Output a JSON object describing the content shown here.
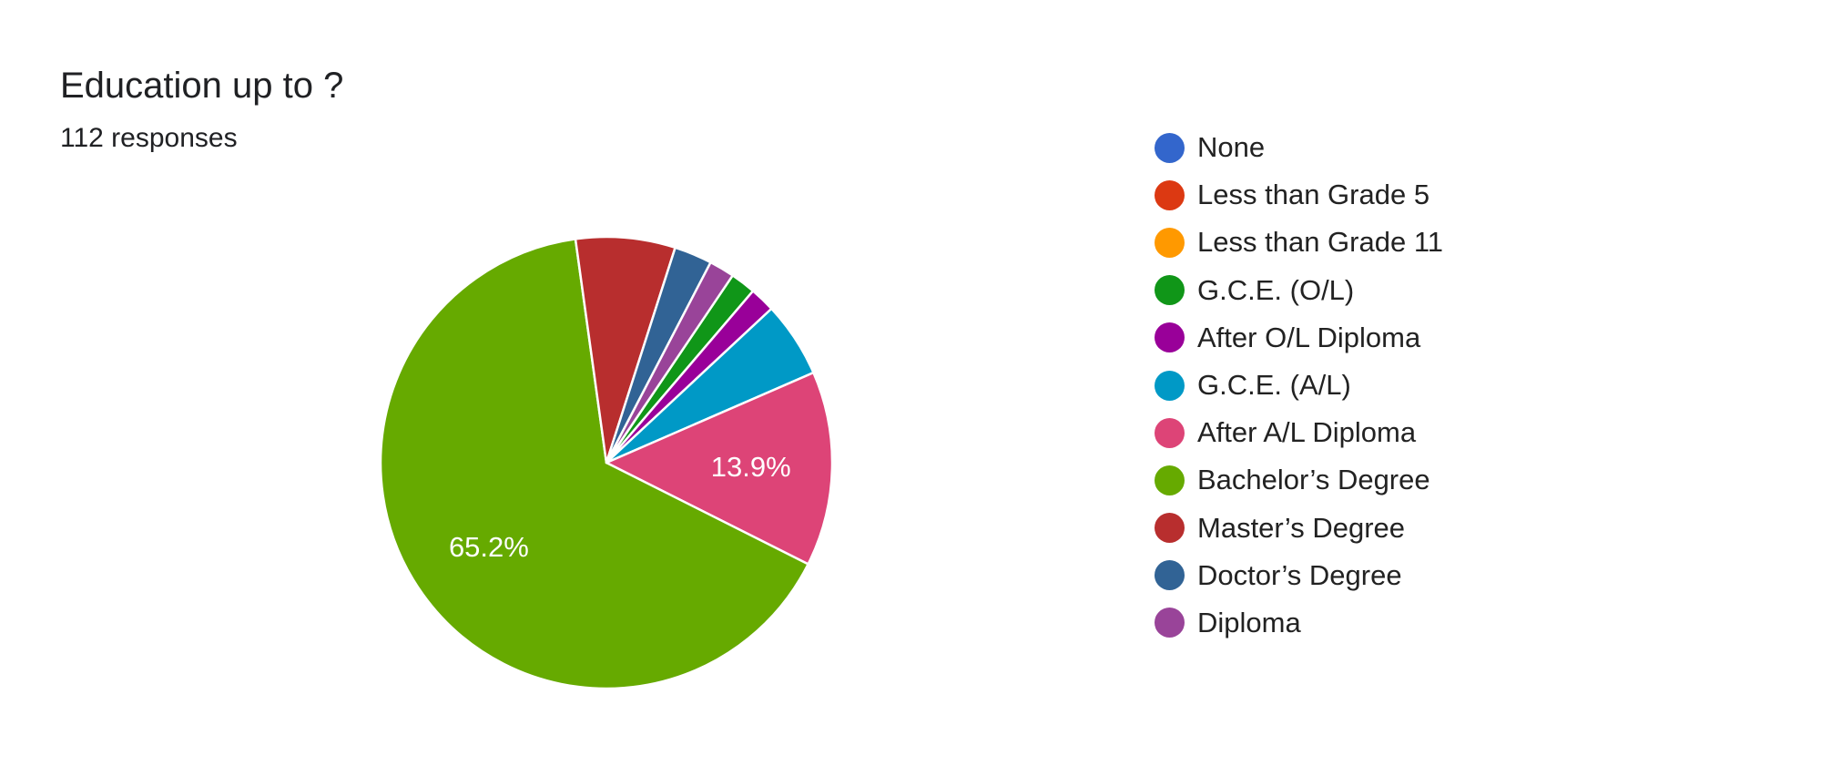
{
  "header": {
    "title": "Education up to ?",
    "subtitle": "112 responses"
  },
  "chart_data": {
    "type": "pie",
    "title": "Education up to ?",
    "total_responses": 112,
    "start_angle_deg": 34,
    "slices": [
      {
        "name": "None",
        "value": 0,
        "color": "#3366cc"
      },
      {
        "name": "Less than Grade 5",
        "value": 0,
        "color": "#dc3912"
      },
      {
        "name": "Less than Grade 11",
        "value": 0,
        "color": "#ff9900"
      },
      {
        "name": "G.C.E. (O/L)",
        "value": 1.8,
        "color": "#109618"
      },
      {
        "name": "After O/L Diploma",
        "value": 1.8,
        "color": "#990099"
      },
      {
        "name": "G.C.E. (A/L)",
        "value": 5.4,
        "color": "#0099c6"
      },
      {
        "name": "After A/L Diploma",
        "value": 13.9,
        "color": "#dd4477",
        "label": "13.9%"
      },
      {
        "name": "Bachelor’s Degree",
        "value": 65.2,
        "color": "#66aa00",
        "label": "65.2%"
      },
      {
        "name": "Master’s Degree",
        "value": 7.1,
        "color": "#b82e2e"
      },
      {
        "name": "Doctor’s Degree",
        "value": 2.7,
        "color": "#316395"
      },
      {
        "name": "Diploma",
        "value": 1.8,
        "color": "#994499"
      }
    ],
    "legend_position": "right"
  }
}
